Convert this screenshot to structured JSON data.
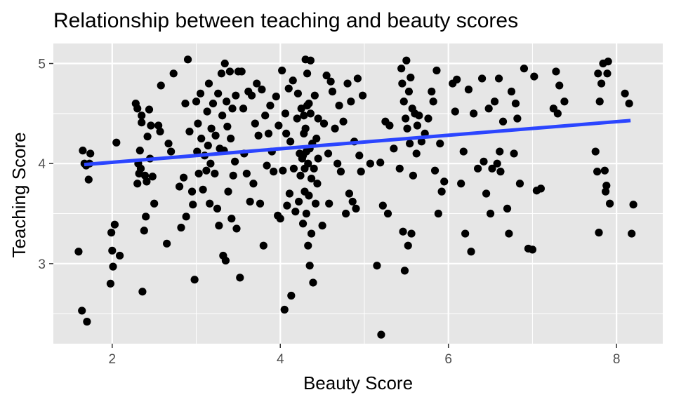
{
  "chart_data": {
    "type": "scatter",
    "title": "Relationship between teaching and beauty scores",
    "xlabel": "Beauty Score",
    "ylabel": "Teaching Score",
    "xlim": [
      1.3,
      8.55
    ],
    "ylim": [
      2.2,
      5.2
    ],
    "x_ticks": [
      2,
      4,
      6,
      8
    ],
    "y_ticks": [
      3,
      4,
      5
    ],
    "grid": true,
    "legend": "none",
    "colors": {
      "panel": "#e6e6e6",
      "grid": "#ffffff",
      "points": "#000000",
      "trend": "#2b45ff"
    },
    "trend_line": {
      "x": [
        1.667,
        8.167
      ],
      "y": [
        3.99,
        4.43
      ]
    },
    "points": [
      [
        1.6,
        3.12
      ],
      [
        1.64,
        2.53
      ],
      [
        1.65,
        4.13
      ],
      [
        1.67,
        4.0
      ],
      [
        1.7,
        2.42
      ],
      [
        1.72,
        3.84
      ],
      [
        1.74,
        4.1
      ],
      [
        1.73,
        4.0
      ],
      [
        1.98,
        2.8
      ],
      [
        1.99,
        3.31
      ],
      [
        2.0,
        3.13
      ],
      [
        2.01,
        2.97
      ],
      [
        2.03,
        3.39
      ],
      [
        2.05,
        4.21
      ],
      [
        2.09,
        3.08
      ],
      [
        2.28,
        4.6
      ],
      [
        2.3,
        4.55
      ],
      [
        2.31,
        4.0
      ],
      [
        2.3,
        3.8
      ],
      [
        2.32,
        3.9
      ],
      [
        2.33,
        4.13
      ],
      [
        2.35,
        4.41
      ],
      [
        2.36,
        2.72
      ],
      [
        2.38,
        3.33
      ],
      [
        2.4,
        3.47
      ],
      [
        2.42,
        4.27
      ],
      [
        2.44,
        4.54
      ],
      [
        2.46,
        4.38
      ],
      [
        2.48,
        3.87
      ],
      [
        2.5,
        3.6
      ],
      [
        2.35,
        4.48
      ],
      [
        2.39,
        3.88
      ],
      [
        2.41,
        3.82
      ],
      [
        2.45,
        4.05
      ],
      [
        2.55,
        4.38
      ],
      [
        2.57,
        4.32
      ],
      [
        2.58,
        4.78
      ],
      [
        2.65,
        3.2
      ],
      [
        2.67,
        4.2
      ],
      [
        2.7,
        4.12
      ],
      [
        2.73,
        4.9
      ],
      [
        2.8,
        3.77
      ],
      [
        2.82,
        3.36
      ],
      [
        2.85,
        3.86
      ],
      [
        2.87,
        4.6
      ],
      [
        2.88,
        3.47
      ],
      [
        2.9,
        5.04
      ],
      [
        2.92,
        4.32
      ],
      [
        2.95,
        3.72
      ],
      [
        2.96,
        3.59
      ],
      [
        2.98,
        2.84
      ],
      [
        3.0,
        4.62
      ],
      [
        3.01,
        4.12
      ],
      [
        3.02,
        4.4
      ],
      [
        3.03,
        3.9
      ],
      [
        3.05,
        4.7
      ],
      [
        3.06,
        4.25
      ],
      [
        3.08,
        3.74
      ],
      [
        3.1,
        4.08
      ],
      [
        3.12,
        3.93
      ],
      [
        3.13,
        4.52
      ],
      [
        3.15,
        4.8
      ],
      [
        3.16,
        3.6
      ],
      [
        3.17,
        4.0
      ],
      [
        3.18,
        4.35
      ],
      [
        3.2,
        4.6
      ],
      [
        3.22,
        3.9
      ],
      [
        3.23,
        4.28
      ],
      [
        3.25,
        3.55
      ],
      [
        3.26,
        4.7
      ],
      [
        3.27,
        3.38
      ],
      [
        3.28,
        4.15
      ],
      [
        3.3,
        4.9
      ],
      [
        3.31,
        4.48
      ],
      [
        3.32,
        3.08
      ],
      [
        3.33,
        4.13
      ],
      [
        3.34,
        5.0
      ],
      [
        3.35,
        3.03
      ],
      [
        3.36,
        4.62
      ],
      [
        3.37,
        4.37
      ],
      [
        3.38,
        3.72
      ],
      [
        3.4,
        4.92
      ],
      [
        3.41,
        4.25
      ],
      [
        3.42,
        3.45
      ],
      [
        3.43,
        4.55
      ],
      [
        3.44,
        3.88
      ],
      [
        3.46,
        4.02
      ],
      [
        3.47,
        4.68
      ],
      [
        3.48,
        3.35
      ],
      [
        3.5,
        4.92
      ],
      [
        3.52,
        2.86
      ],
      [
        3.54,
        4.92
      ],
      [
        3.56,
        4.55
      ],
      [
        3.6,
        3.9
      ],
      [
        3.62,
        4.72
      ],
      [
        3.64,
        3.62
      ],
      [
        3.66,
        4.68
      ],
      [
        3.68,
        3.8
      ],
      [
        3.7,
        4.4
      ],
      [
        3.72,
        4.8
      ],
      [
        3.74,
        4.28
      ],
      [
        3.76,
        3.6
      ],
      [
        3.78,
        4.74
      ],
      [
        3.8,
        3.18
      ],
      [
        3.82,
        4.48
      ],
      [
        3.84,
        3.98
      ],
      [
        3.86,
        4.3
      ],
      [
        3.88,
        4.58
      ],
      [
        3.9,
        4.12
      ],
      [
        3.92,
        3.92
      ],
      [
        3.95,
        4.67
      ],
      [
        3.97,
        3.48
      ],
      [
        3.98,
        4.38
      ],
      [
        4.0,
        3.45
      ],
      [
        4.02,
        4.93
      ],
      [
        4.03,
        3.93
      ],
      [
        4.05,
        2.54
      ],
      [
        4.06,
        4.5
      ],
      [
        4.08,
        3.58
      ],
      [
        4.1,
        4.75
      ],
      [
        4.11,
        3.7
      ],
      [
        4.12,
        4.22
      ],
      [
        4.13,
        2.68
      ],
      [
        4.15,
        4.83
      ],
      [
        4.16,
        3.95
      ],
      [
        4.18,
        3.52
      ],
      [
        4.2,
        4.45
      ],
      [
        4.21,
        4.7
      ],
      [
        4.22,
        3.62
      ],
      [
        4.23,
        4.1
      ],
      [
        4.24,
        3.88
      ],
      [
        4.25,
        4.55
      ],
      [
        4.26,
        4.05
      ],
      [
        4.27,
        3.4
      ],
      [
        4.28,
        4.48
      ],
      [
        4.29,
        3.72
      ],
      [
        4.3,
        4.35
      ],
      [
        4.31,
        3.5
      ],
      [
        4.32,
        4.9
      ],
      [
        4.33,
        3.18
      ],
      [
        4.34,
        4.6
      ],
      [
        4.35,
        2.98
      ],
      [
        4.36,
        5.03
      ],
      [
        4.37,
        3.3
      ],
      [
        4.38,
        4.2
      ],
      [
        4.39,
        2.81
      ],
      [
        4.4,
        3.95
      ],
      [
        4.41,
        4.68
      ],
      [
        4.42,
        3.6
      ],
      [
        4.43,
        4.25
      ],
      [
        4.44,
        3.8
      ],
      [
        4.45,
        4.45
      ],
      [
        4.3,
        5.04
      ],
      [
        4.33,
        4.0
      ],
      [
        4.35,
        4.15
      ],
      [
        4.37,
        3.85
      ],
      [
        4.28,
        4.3
      ],
      [
        4.31,
        4.12
      ],
      [
        4.34,
        3.68
      ],
      [
        4.36,
        4.5
      ],
      [
        4.29,
        3.95
      ],
      [
        4.32,
        4.58
      ],
      [
        4.27,
        4.08
      ],
      [
        4.45,
        4.05
      ],
      [
        4.5,
        3.38
      ],
      [
        4.52,
        4.4
      ],
      [
        4.55,
        4.88
      ],
      [
        4.58,
        3.6
      ],
      [
        4.6,
        4.82
      ],
      [
        4.62,
        4.72
      ],
      [
        4.65,
        4.35
      ],
      [
        4.68,
        4.0
      ],
      [
        4.7,
        4.58
      ],
      [
        4.72,
        3.92
      ],
      [
        4.75,
        4.42
      ],
      [
        4.78,
        3.5
      ],
      [
        4.8,
        4.8
      ],
      [
        4.82,
        3.7
      ],
      [
        4.84,
        4.62
      ],
      [
        4.86,
        3.62
      ],
      [
        4.88,
        4.22
      ],
      [
        4.9,
        3.55
      ],
      [
        4.92,
        4.85
      ],
      [
        4.94,
        4.08
      ],
      [
        4.96,
        3.92
      ],
      [
        4.98,
        4.68
      ],
      [
        5.15,
        2.98
      ],
      [
        5.19,
        4.01
      ],
      [
        5.2,
        2.29
      ],
      [
        5.22,
        3.58
      ],
      [
        5.25,
        4.42
      ],
      [
        5.28,
        3.5
      ],
      [
        5.3,
        4.38
      ],
      [
        5.35,
        4.15
      ],
      [
        5.42,
        3.95
      ],
      [
        5.44,
        4.95
      ],
      [
        5.45,
        4.8
      ],
      [
        5.46,
        3.32
      ],
      [
        5.47,
        4.62
      ],
      [
        5.48,
        2.93
      ],
      [
        5.49,
        4.45
      ],
      [
        5.5,
        5.03
      ],
      [
        5.51,
        4.35
      ],
      [
        5.52,
        3.18
      ],
      [
        5.53,
        4.72
      ],
      [
        5.54,
        4.2
      ],
      [
        5.55,
        4.86
      ],
      [
        5.56,
        3.3
      ],
      [
        5.57,
        4.55
      ],
      [
        5.58,
        3.88
      ],
      [
        5.6,
        4.5
      ],
      [
        5.62,
        4.1
      ],
      [
        5.65,
        4.48
      ],
      [
        5.68,
        4.22
      ],
      [
        5.72,
        4.3
      ],
      [
        5.76,
        4.45
      ],
      [
        5.8,
        4.72
      ],
      [
        5.82,
        4.62
      ],
      [
        5.84,
        3.93
      ],
      [
        5.86,
        4.93
      ],
      [
        5.88,
        3.5
      ],
      [
        5.9,
        4.2
      ],
      [
        5.92,
        3.72
      ],
      [
        5.95,
        3.82
      ],
      [
        6.05,
        4.8
      ],
      [
        6.1,
        4.84
      ],
      [
        6.15,
        3.8
      ],
      [
        6.18,
        4.12
      ],
      [
        6.2,
        3.3
      ],
      [
        6.24,
        4.74
      ],
      [
        6.27,
        3.12
      ],
      [
        6.3,
        4.5
      ],
      [
        6.35,
        3.95
      ],
      [
        6.4,
        4.85
      ],
      [
        6.42,
        4.02
      ],
      [
        6.45,
        3.7
      ],
      [
        6.48,
        4.55
      ],
      [
        6.5,
        3.5
      ],
      [
        6.52,
        3.95
      ],
      [
        6.55,
        4.62
      ],
      [
        6.58,
        4.0
      ],
      [
        6.6,
        4.85
      ],
      [
        6.62,
        3.92
      ],
      [
        6.65,
        4.42
      ],
      [
        6.7,
        3.55
      ],
      [
        6.72,
        3.3
      ],
      [
        6.75,
        4.72
      ],
      [
        6.78,
        4.1
      ],
      [
        6.8,
        4.6
      ],
      [
        6.82,
        4.45
      ],
      [
        6.85,
        3.8
      ],
      [
        6.9,
        4.95
      ],
      [
        6.95,
        3.15
      ],
      [
        7.0,
        3.14
      ],
      [
        7.02,
        4.87
      ],
      [
        7.05,
        3.73
      ],
      [
        7.1,
        3.75
      ],
      [
        7.25,
        4.55
      ],
      [
        7.28,
        4.92
      ],
      [
        7.32,
        4.78
      ],
      [
        7.38,
        4.62
      ],
      [
        7.75,
        4.12
      ],
      [
        7.77,
        3.92
      ],
      [
        7.78,
        4.9
      ],
      [
        7.79,
        3.31
      ],
      [
        7.8,
        4.62
      ],
      [
        7.82,
        4.8
      ],
      [
        7.84,
        5.0
      ],
      [
        7.86,
        3.93
      ],
      [
        7.87,
        3.72
      ],
      [
        7.88,
        3.78
      ],
      [
        7.89,
        4.9
      ],
      [
        7.9,
        5.02
      ],
      [
        7.92,
        3.6
      ],
      [
        8.1,
        4.7
      ],
      [
        8.15,
        4.6
      ],
      [
        8.18,
        3.3
      ],
      [
        8.2,
        3.59
      ],
      [
        1.69,
        3.98
      ],
      [
        2.34,
        3.95
      ],
      [
        3.14,
        4.18
      ],
      [
        3.57,
        4.1
      ],
      [
        4.07,
        4.3
      ],
      [
        4.57,
        4.1
      ],
      [
        5.07,
        4.0
      ],
      [
        5.63,
        4.38
      ],
      [
        6.08,
        4.52
      ],
      [
        6.61,
        4.12
      ],
      [
        7.3,
        4.5
      ]
    ]
  }
}
